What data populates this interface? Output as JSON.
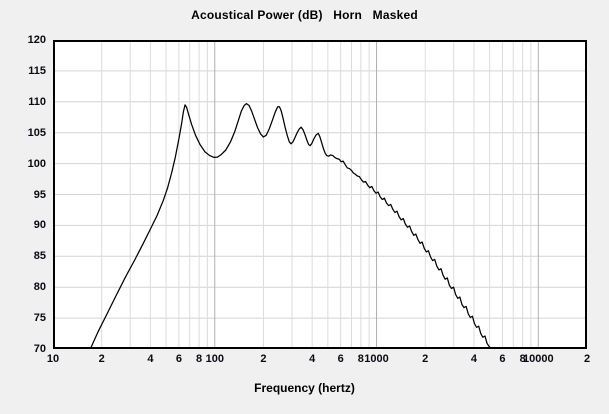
{
  "title": "Acoustical Power (dB)   Horn   Masked",
  "colors": {
    "background": "#f0f0f0",
    "plot_background": "#ffffff",
    "frame": "#000000",
    "grid_minor": "#dcdcdc",
    "grid_major": "#b0b0b0",
    "grid_horizontal": "#d4d4d4",
    "curve": "#000000",
    "text": "#0a0a12"
  },
  "chart_data": {
    "type": "line",
    "title": "Acoustical Power (dB)   Horn   Masked",
    "xlabel": "Frequency (hertz)",
    "ylabel": "",
    "x_scale": "log",
    "xlim": [
      10,
      20000
    ],
    "ylim": [
      70,
      120
    ],
    "grid": true,
    "legend": "none",
    "y_ticks": [
      120,
      115,
      110,
      105,
      100,
      95,
      90,
      85,
      80,
      75,
      70
    ],
    "x_ticks": [
      {
        "label": "10",
        "value": 10
      },
      {
        "label": "2",
        "value": 20
      },
      {
        "label": "4",
        "value": 40
      },
      {
        "label": "6",
        "value": 60
      },
      {
        "label": "8",
        "value": 80
      },
      {
        "label": "100",
        "value": 100
      },
      {
        "label": "2",
        "value": 200
      },
      {
        "label": "4",
        "value": 400
      },
      {
        "label": "6",
        "value": 600
      },
      {
        "label": "8",
        "value": 800
      },
      {
        "label": "1000",
        "value": 1000
      },
      {
        "label": "2",
        "value": 2000
      },
      {
        "label": "4",
        "value": 4000
      },
      {
        "label": "6",
        "value": 6000
      },
      {
        "label": "8",
        "value": 8000
      },
      {
        "label": "10000",
        "value": 10000
      },
      {
        "label": "2",
        "value": 20000
      }
    ],
    "x_major_gridlines": [
      100,
      1000,
      10000
    ],
    "x_minor_gridline_multipliers": [
      2,
      3,
      4,
      5,
      6,
      7,
      8,
      9
    ],
    "series": [
      {
        "name": "Acoustical Power",
        "color": "#000000",
        "points": [
          [
            17,
            70.0
          ],
          [
            19,
            72.8
          ],
          [
            21.5,
            75.6
          ],
          [
            24.5,
            78.6
          ],
          [
            28,
            81.6
          ],
          [
            32,
            84.4
          ],
          [
            36,
            87.0
          ],
          [
            40,
            89.4
          ],
          [
            44,
            91.6
          ],
          [
            48,
            94.0
          ],
          [
            51,
            96.0
          ],
          [
            54,
            98.4
          ],
          [
            57,
            101.0
          ],
          [
            60,
            104.0
          ],
          [
            62.5,
            106.6
          ],
          [
            64,
            108.4
          ],
          [
            65.5,
            109.5
          ],
          [
            67,
            109.1
          ],
          [
            69,
            107.9
          ],
          [
            72,
            106.3
          ],
          [
            76,
            104.6
          ],
          [
            81,
            103.1
          ],
          [
            87,
            101.9
          ],
          [
            93,
            101.3
          ],
          [
            99,
            101.0
          ],
          [
            104,
            101.05
          ],
          [
            110,
            101.5
          ],
          [
            117,
            102.2
          ],
          [
            125,
            103.5
          ],
          [
            133,
            105.2
          ],
          [
            140,
            107.0
          ],
          [
            146,
            108.5
          ],
          [
            152,
            109.4
          ],
          [
            157,
            109.7
          ],
          [
            163,
            109.4
          ],
          [
            169,
            108.5
          ],
          [
            176,
            107.2
          ],
          [
            184,
            105.8
          ],
          [
            192,
            104.8
          ],
          [
            200,
            104.3
          ],
          [
            208,
            104.6
          ],
          [
            217,
            105.6
          ],
          [
            227,
            107.0
          ],
          [
            237,
            108.4
          ],
          [
            245,
            109.2
          ],
          [
            251,
            109.2
          ],
          [
            257,
            108.6
          ],
          [
            264,
            107.4
          ],
          [
            272,
            105.9
          ],
          [
            281,
            104.5
          ],
          [
            289,
            103.5
          ],
          [
            296,
            103.2
          ],
          [
            304,
            103.5
          ],
          [
            313,
            104.2
          ],
          [
            323,
            105.0
          ],
          [
            333,
            105.6
          ],
          [
            342,
            105.9
          ],
          [
            351,
            105.5
          ],
          [
            361,
            104.7
          ],
          [
            371,
            103.8
          ],
          [
            380,
            103.1
          ],
          [
            388,
            102.9
          ],
          [
            397,
            103.2
          ],
          [
            408,
            103.9
          ],
          [
            422,
            104.6
          ],
          [
            436,
            104.9
          ],
          [
            447,
            104.3
          ],
          [
            459,
            103.3
          ],
          [
            470,
            102.4
          ],
          [
            481,
            101.7
          ],
          [
            492,
            101.3
          ],
          [
            506,
            101.2
          ],
          [
            520,
            101.4
          ],
          [
            537,
            101.3
          ],
          [
            552,
            101.0
          ],
          [
            570,
            100.8
          ],
          [
            588,
            100.7
          ],
          [
            604,
            100.3
          ],
          [
            622,
            100.4
          ],
          [
            641,
            99.8
          ],
          [
            660,
            99.3
          ],
          [
            680,
            99.2
          ],
          [
            700,
            98.9
          ],
          [
            718,
            98.5
          ],
          [
            738,
            98.3
          ],
          [
            760,
            98.0
          ],
          [
            783,
            97.9
          ],
          [
            806,
            97.4
          ],
          [
            830,
            97.0
          ],
          [
            856,
            97.1
          ],
          [
            882,
            96.5
          ],
          [
            908,
            96.1
          ],
          [
            936,
            96.3
          ],
          [
            964,
            95.6
          ],
          [
            993,
            95.2
          ],
          [
            1023,
            95.4
          ],
          [
            1054,
            94.6
          ],
          [
            1086,
            94.2
          ],
          [
            1119,
            94.4
          ],
          [
            1153,
            93.6
          ],
          [
            1188,
            93.2
          ],
          [
            1224,
            93.4
          ],
          [
            1261,
            92.6
          ],
          [
            1299,
            92.1
          ],
          [
            1338,
            92.3
          ],
          [
            1379,
            91.4
          ],
          [
            1421,
            90.9
          ],
          [
            1464,
            91.1
          ],
          [
            1508,
            90.2
          ],
          [
            1554,
            89.7
          ],
          [
            1601,
            89.9
          ],
          [
            1649,
            89.0
          ],
          [
            1699,
            88.4
          ],
          [
            1750,
            88.6
          ],
          [
            1803,
            87.7
          ],
          [
            1858,
            87.1
          ],
          [
            1914,
            87.3
          ],
          [
            1972,
            86.3
          ],
          [
            2032,
            85.7
          ],
          [
            2093,
            85.9
          ],
          [
            2157,
            84.9
          ],
          [
            2222,
            84.3
          ],
          [
            2289,
            84.5
          ],
          [
            2359,
            83.4
          ],
          [
            2430,
            82.8
          ],
          [
            2504,
            83.0
          ],
          [
            2580,
            81.9
          ],
          [
            2658,
            81.3
          ],
          [
            2738,
            81.5
          ],
          [
            2821,
            80.3
          ],
          [
            2906,
            79.8
          ],
          [
            2994,
            80.0
          ],
          [
            3085,
            78.8
          ],
          [
            3178,
            78.2
          ],
          [
            3274,
            78.4
          ],
          [
            3373,
            77.2
          ],
          [
            3475,
            76.7
          ],
          [
            3580,
            76.9
          ],
          [
            3688,
            75.7
          ],
          [
            3800,
            75.1
          ],
          [
            3915,
            75.3
          ],
          [
            4033,
            74.1
          ],
          [
            4155,
            73.5
          ],
          [
            4281,
            73.7
          ],
          [
            4410,
            72.5
          ],
          [
            4543,
            71.9
          ],
          [
            4680,
            72.1
          ],
          [
            4822,
            70.9
          ],
          [
            4967,
            70.4
          ],
          [
            5117,
            70.05
          ],
          [
            5200,
            70.0
          ]
        ]
      }
    ]
  }
}
